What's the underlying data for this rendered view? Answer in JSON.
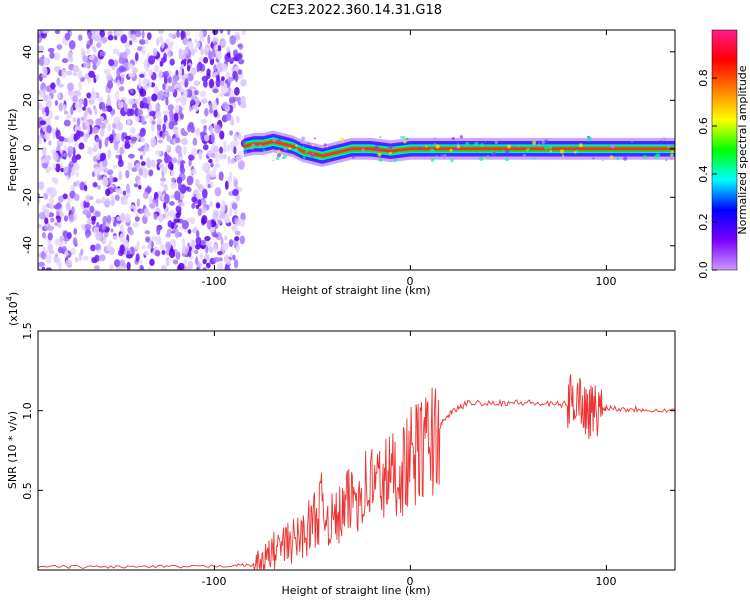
{
  "figure_title": "C2E3.2022.360.14.31.G18",
  "chart_data": [
    {
      "type": "heatmap",
      "xlabel": "Height of straight line (km)",
      "ylabel": "Frequency (Hz)",
      "xlim": [
        -190,
        135
      ],
      "ylim": [
        -50,
        49
      ],
      "x_ticks": [
        "-100",
        "0",
        "100"
      ],
      "x_tick_values": [
        -100,
        0,
        100
      ],
      "y_ticks": [
        "40",
        "20",
        "0",
        "-20",
        "-40"
      ],
      "y_tick_values": [
        40,
        20,
        0,
        -20,
        -40
      ],
      "grid": false,
      "noise_region_x": [
        -190,
        -85
      ],
      "signal_track": {
        "x": [
          -85,
          -80,
          -75,
          -70,
          -65,
          -60,
          -55,
          -50,
          -45,
          -40,
          -35,
          -30,
          -25,
          -20,
          -10,
          0,
          10,
          20,
          40,
          60,
          80,
          100,
          120,
          135
        ],
        "freq_hz": [
          1,
          2,
          2,
          3,
          2,
          1,
          -1,
          -2,
          -3,
          -2,
          -1,
          0,
          0,
          0,
          -1,
          0,
          0,
          0,
          0,
          0,
          0,
          0,
          0,
          0
        ]
      },
      "colorbar": {
        "label": "Normalized spectral amplitude",
        "ticks": [
          "0.0",
          "0.2",
          "0.4",
          "0.6",
          "0.8"
        ],
        "tick_values": [
          0.0,
          0.2,
          0.4,
          0.6,
          0.8
        ],
        "range": [
          0,
          1
        ],
        "colors": [
          "#ffffff",
          "#cc99ff",
          "#7700ff",
          "#0000ff",
          "#00ffff",
          "#00ff00",
          "#ffff00",
          "#ff7f00",
          "#ff0000",
          "#ff1a8c"
        ]
      }
    },
    {
      "type": "line",
      "xlabel": "Height of straight line (km)",
      "ylabel": "SNR (10 * v/v)",
      "y_multiplier": "(x10",
      "y_multiplier_exp": "4",
      "y_multiplier_close": ")",
      "xlim": [
        -190,
        135
      ],
      "ylim": [
        0,
        1.5
      ],
      "x_ticks": [
        "-100",
        "0",
        "100"
      ],
      "x_tick_values": [
        -100,
        0,
        100
      ],
      "y_ticks": [
        "1.5",
        "1.0",
        "0.5"
      ],
      "y_tick_values": [
        1.5,
        1.0,
        0.5
      ],
      "grid": false,
      "series": [
        {
          "color": "#ee3333",
          "x": [
            -190,
            -170,
            -150,
            -130,
            -110,
            -90,
            -80,
            -75,
            -70,
            -65,
            -60,
            -55,
            -50,
            -45,
            -40,
            -35,
            -30,
            -25,
            -20,
            -15,
            -10,
            -5,
            0,
            5,
            10,
            15,
            20,
            25,
            30,
            40,
            50,
            60,
            70,
            80,
            85,
            90,
            95,
            100,
            110,
            120,
            135
          ],
          "y": [
            0.02,
            0.02,
            0.02,
            0.02,
            0.02,
            0.03,
            0.03,
            0.05,
            0.12,
            0.15,
            0.18,
            0.22,
            0.3,
            0.4,
            0.3,
            0.35,
            0.45,
            0.5,
            0.55,
            0.55,
            0.6,
            0.62,
            0.7,
            0.75,
            0.8,
            0.9,
            0.98,
            1.02,
            1.05,
            1.05,
            1.05,
            1.05,
            1.04,
            1.04,
            1.1,
            1.0,
            1.0,
            1.02,
            1.01,
            1.01,
            1.0
          ]
        }
      ]
    }
  ]
}
